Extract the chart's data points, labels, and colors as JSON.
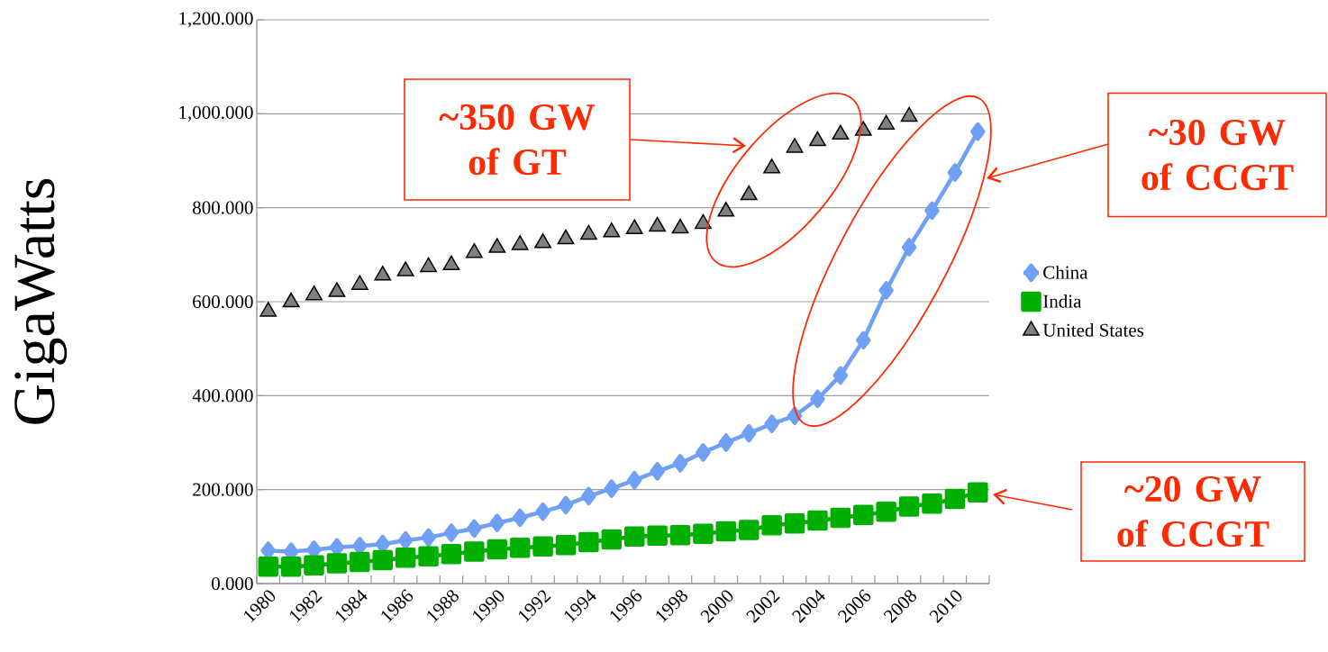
{
  "chart_data": {
    "type": "line",
    "ylabel": "GigaWatts",
    "categories": [
      "1980",
      null,
      "1982",
      null,
      "1984",
      null,
      "1986",
      null,
      "1988",
      null,
      "1990",
      null,
      "1992",
      null,
      "1994",
      null,
      "1996",
      null,
      "1998",
      null,
      "2000",
      null,
      "2002",
      null,
      "2004",
      null,
      "2006",
      null,
      "2008",
      null,
      "2010",
      null
    ],
    "series": [
      {
        "name": "China",
        "marker": "diamond",
        "color": "#6fa0f5",
        "values": [
          70,
          68,
          72,
          77,
          80,
          84,
          92,
          98,
          108,
          117,
          129,
          140,
          153,
          167,
          186,
          202,
          220,
          239,
          256,
          279,
          300,
          320,
          340,
          357,
          393,
          443,
          518,
          624,
          716,
          794,
          875,
          962
        ]
      },
      {
        "name": "India",
        "marker": "square",
        "color": "#00b000",
        "values": [
          36,
          36,
          39,
          43,
          46,
          50,
          55,
          58,
          63,
          68,
          73,
          76,
          79,
          82,
          88,
          94,
          100,
          102,
          103,
          106,
          111,
          114,
          124,
          128,
          134,
          140,
          146,
          153,
          164,
          170,
          180,
          194
        ]
      },
      {
        "name": "United States",
        "type": "scatter",
        "marker": "triangle",
        "color": "#808080",
        "values": [
          579,
          599,
          614,
          621,
          636,
          656,
          665,
          674,
          678,
          704,
          715,
          721,
          725,
          733,
          743,
          748,
          755,
          760,
          756,
          766,
          792,
          827,
          884,
          928,
          942,
          956,
          964,
          977,
          994,
          null,
          null,
          null
        ]
      }
    ],
    "ylim": [
      0,
      1200
    ],
    "yticks": [
      {
        "value": 0,
        "label": "0.000"
      },
      {
        "value": 200,
        "label": "200.000"
      },
      {
        "value": 400,
        "label": "400.000"
      },
      {
        "value": 600,
        "label": "600.000"
      },
      {
        "value": 800,
        "label": "800.000"
      },
      {
        "value": 1000,
        "label": "1,000.000"
      },
      {
        "value": 1200,
        "label": "1,200.000"
      }
    ],
    "grid": "y",
    "legend": "right",
    "annotations": [
      "~350 GW of GT",
      "~30 GW of CCGT",
      "~20 GW of CCGT"
    ]
  }
}
